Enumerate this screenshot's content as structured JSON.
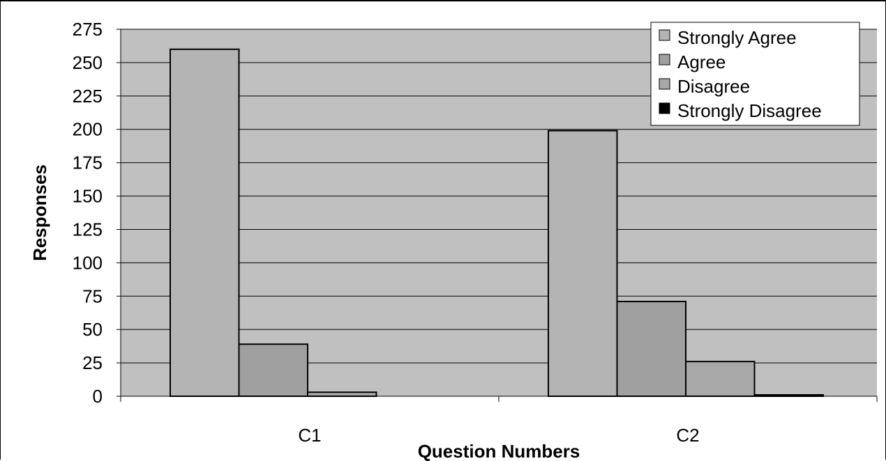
{
  "chart_data": {
    "type": "bar",
    "title": "",
    "xlabel": "Question Numbers",
    "ylabel": "Responses",
    "ylim": [
      0,
      275
    ],
    "yticks": [
      0,
      25,
      50,
      75,
      100,
      125,
      150,
      175,
      200,
      225,
      250,
      275
    ],
    "ytick_labels": [
      "0",
      "25",
      "50",
      "75",
      "100",
      "125",
      "150",
      "175",
      "200",
      "225",
      "250",
      "275"
    ],
    "categories": [
      "C1",
      "C2"
    ],
    "grid": true,
    "legend_position": "top-right",
    "series": [
      {
        "name": "Strongly Agree",
        "values": [
          260,
          199
        ],
        "color": "#b4b4b4"
      },
      {
        "name": "Agree",
        "values": [
          39,
          71
        ],
        "color": "#a0a0a0"
      },
      {
        "name": "Disagree",
        "values": [
          3,
          26
        ],
        "color": "#a8a8a8"
      },
      {
        "name": "Strongly Disagree",
        "values": [
          0,
          1
        ],
        "color": "#000000"
      }
    ],
    "plot_background": "#c0c0c0"
  }
}
